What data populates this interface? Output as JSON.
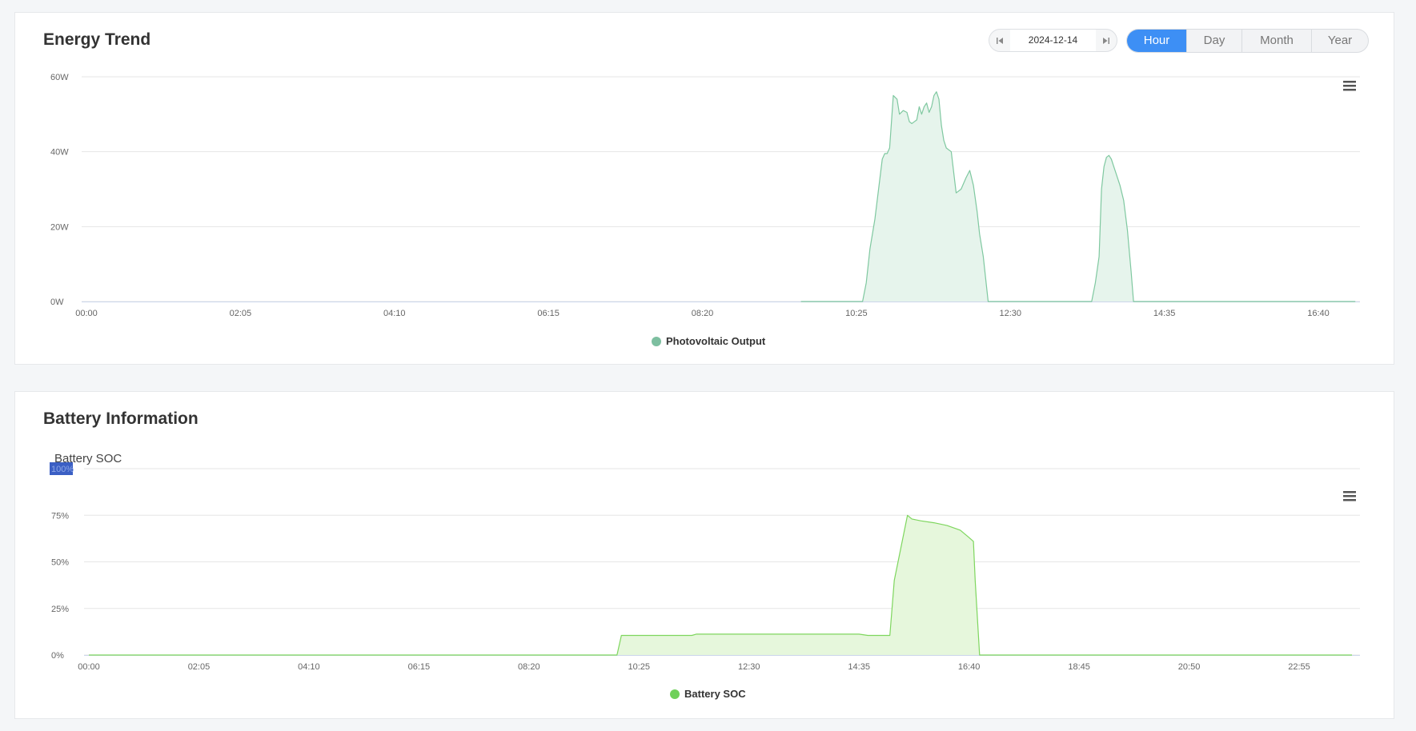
{
  "energy": {
    "title": "Energy Trend",
    "date": "2024-12-14",
    "periods": [
      {
        "label": "Hour",
        "active": true
      },
      {
        "label": "Day",
        "active": false
      },
      {
        "label": "Month",
        "active": false
      },
      {
        "label": "Year",
        "active": false
      }
    ]
  },
  "battery": {
    "title": "Battery Information",
    "chart_title": "Battery SOC"
  },
  "colors": {
    "pv_line": "#7fc8a0",
    "pv_fill": "#e6f4ec",
    "pv_legend": "#7dbfa0",
    "soc_line": "#7ed65e",
    "soc_fill": "#e6f7dc",
    "soc_legend": "#6fd05a",
    "accent": "#3d8ff5"
  },
  "icons": {
    "menu": "hamburger-menu-icon",
    "prev": "skip-prev-icon",
    "next": "skip-next-icon"
  },
  "chart_data": [
    {
      "type": "area",
      "title": "",
      "xlabel": "",
      "ylabel": "",
      "x_ticks": [
        "00:00",
        "02:05",
        "04:10",
        "06:15",
        "08:20",
        "10:25",
        "12:30",
        "14:35",
        "16:40"
      ],
      "y_ticks": [
        "0W",
        "20W",
        "40W",
        "60W"
      ],
      "ylim": [
        0,
        60
      ],
      "x_range": [
        "00:00",
        "16:40"
      ],
      "legend_position": "bottom-center",
      "grid": true,
      "series": [
        {
          "name": "Photovoltaic Output",
          "x": [
            "09:40",
            "10:30",
            "10:33",
            "10:36",
            "10:40",
            "10:43",
            "10:46",
            "10:48",
            "10:50",
            "10:52",
            "10:55",
            "10:58",
            "11:00",
            "11:03",
            "11:06",
            "11:08",
            "11:10",
            "11:12",
            "11:14",
            "11:16",
            "11:18",
            "11:20",
            "11:22",
            "11:24",
            "11:26",
            "11:28",
            "11:30",
            "11:32",
            "11:34",
            "11:36",
            "11:38",
            "11:42",
            "11:46",
            "11:50",
            "11:54",
            "11:57",
            "12:00",
            "12:03",
            "12:05",
            "12:08",
            "12:12",
            "12:15",
            "12:18",
            "12:20",
            "12:23",
            "12:26",
            "12:29",
            "12:31",
            "12:35",
            "13:36",
            "13:39",
            "13:42",
            "13:44",
            "13:46",
            "13:48",
            "13:50",
            "13:52",
            "13:54",
            "13:56",
            "13:59",
            "14:02",
            "14:05",
            "14:08",
            "14:10",
            "14:14",
            "14:17",
            "17:10"
          ],
          "values": [
            0,
            0,
            5,
            14,
            22,
            30,
            38,
            39.5,
            39.5,
            41,
            55,
            54,
            50,
            51,
            50.5,
            48,
            47.5,
            48,
            48.5,
            52,
            50,
            52,
            53,
            50.5,
            52,
            55,
            56,
            54,
            47,
            43,
            41,
            40,
            29,
            30,
            33,
            35,
            31,
            24,
            18,
            12,
            0,
            0,
            0,
            0,
            0,
            0,
            0,
            0,
            0,
            0,
            5,
            12,
            30,
            36,
            38.5,
            39,
            38,
            36,
            34,
            31,
            27,
            19,
            8,
            0,
            0,
            0,
            0
          ]
        }
      ]
    },
    {
      "type": "area",
      "title": "Battery SOC",
      "xlabel": "",
      "ylabel": "",
      "x_ticks": [
        "00:00",
        "02:05",
        "04:10",
        "06:15",
        "08:20",
        "10:25",
        "12:30",
        "14:35",
        "16:40",
        "18:45",
        "20:50",
        "22:55"
      ],
      "y_ticks": [
        "0%",
        "25%",
        "50%",
        "75%",
        "100%"
      ],
      "ylim": [
        0,
        100
      ],
      "x_range": [
        "00:00",
        "23:55"
      ],
      "legend_position": "bottom-center",
      "grid": true,
      "series": [
        {
          "name": "Battery SOC",
          "x": [
            "00:00",
            "10:00",
            "10:05",
            "11:25",
            "11:30",
            "12:40",
            "14:35",
            "14:45",
            "15:10",
            "15:15",
            "15:30",
            "15:35",
            "15:45",
            "16:00",
            "16:15",
            "16:30",
            "16:40",
            "16:45",
            "16:47",
            "16:52",
            "23:55"
          ],
          "values": [
            0,
            0,
            10.5,
            10.5,
            11.2,
            11.2,
            11.2,
            10.5,
            10.5,
            40,
            75,
            73,
            72,
            71,
            69.5,
            67,
            63,
            61,
            40,
            0,
            0
          ]
        }
      ]
    }
  ]
}
